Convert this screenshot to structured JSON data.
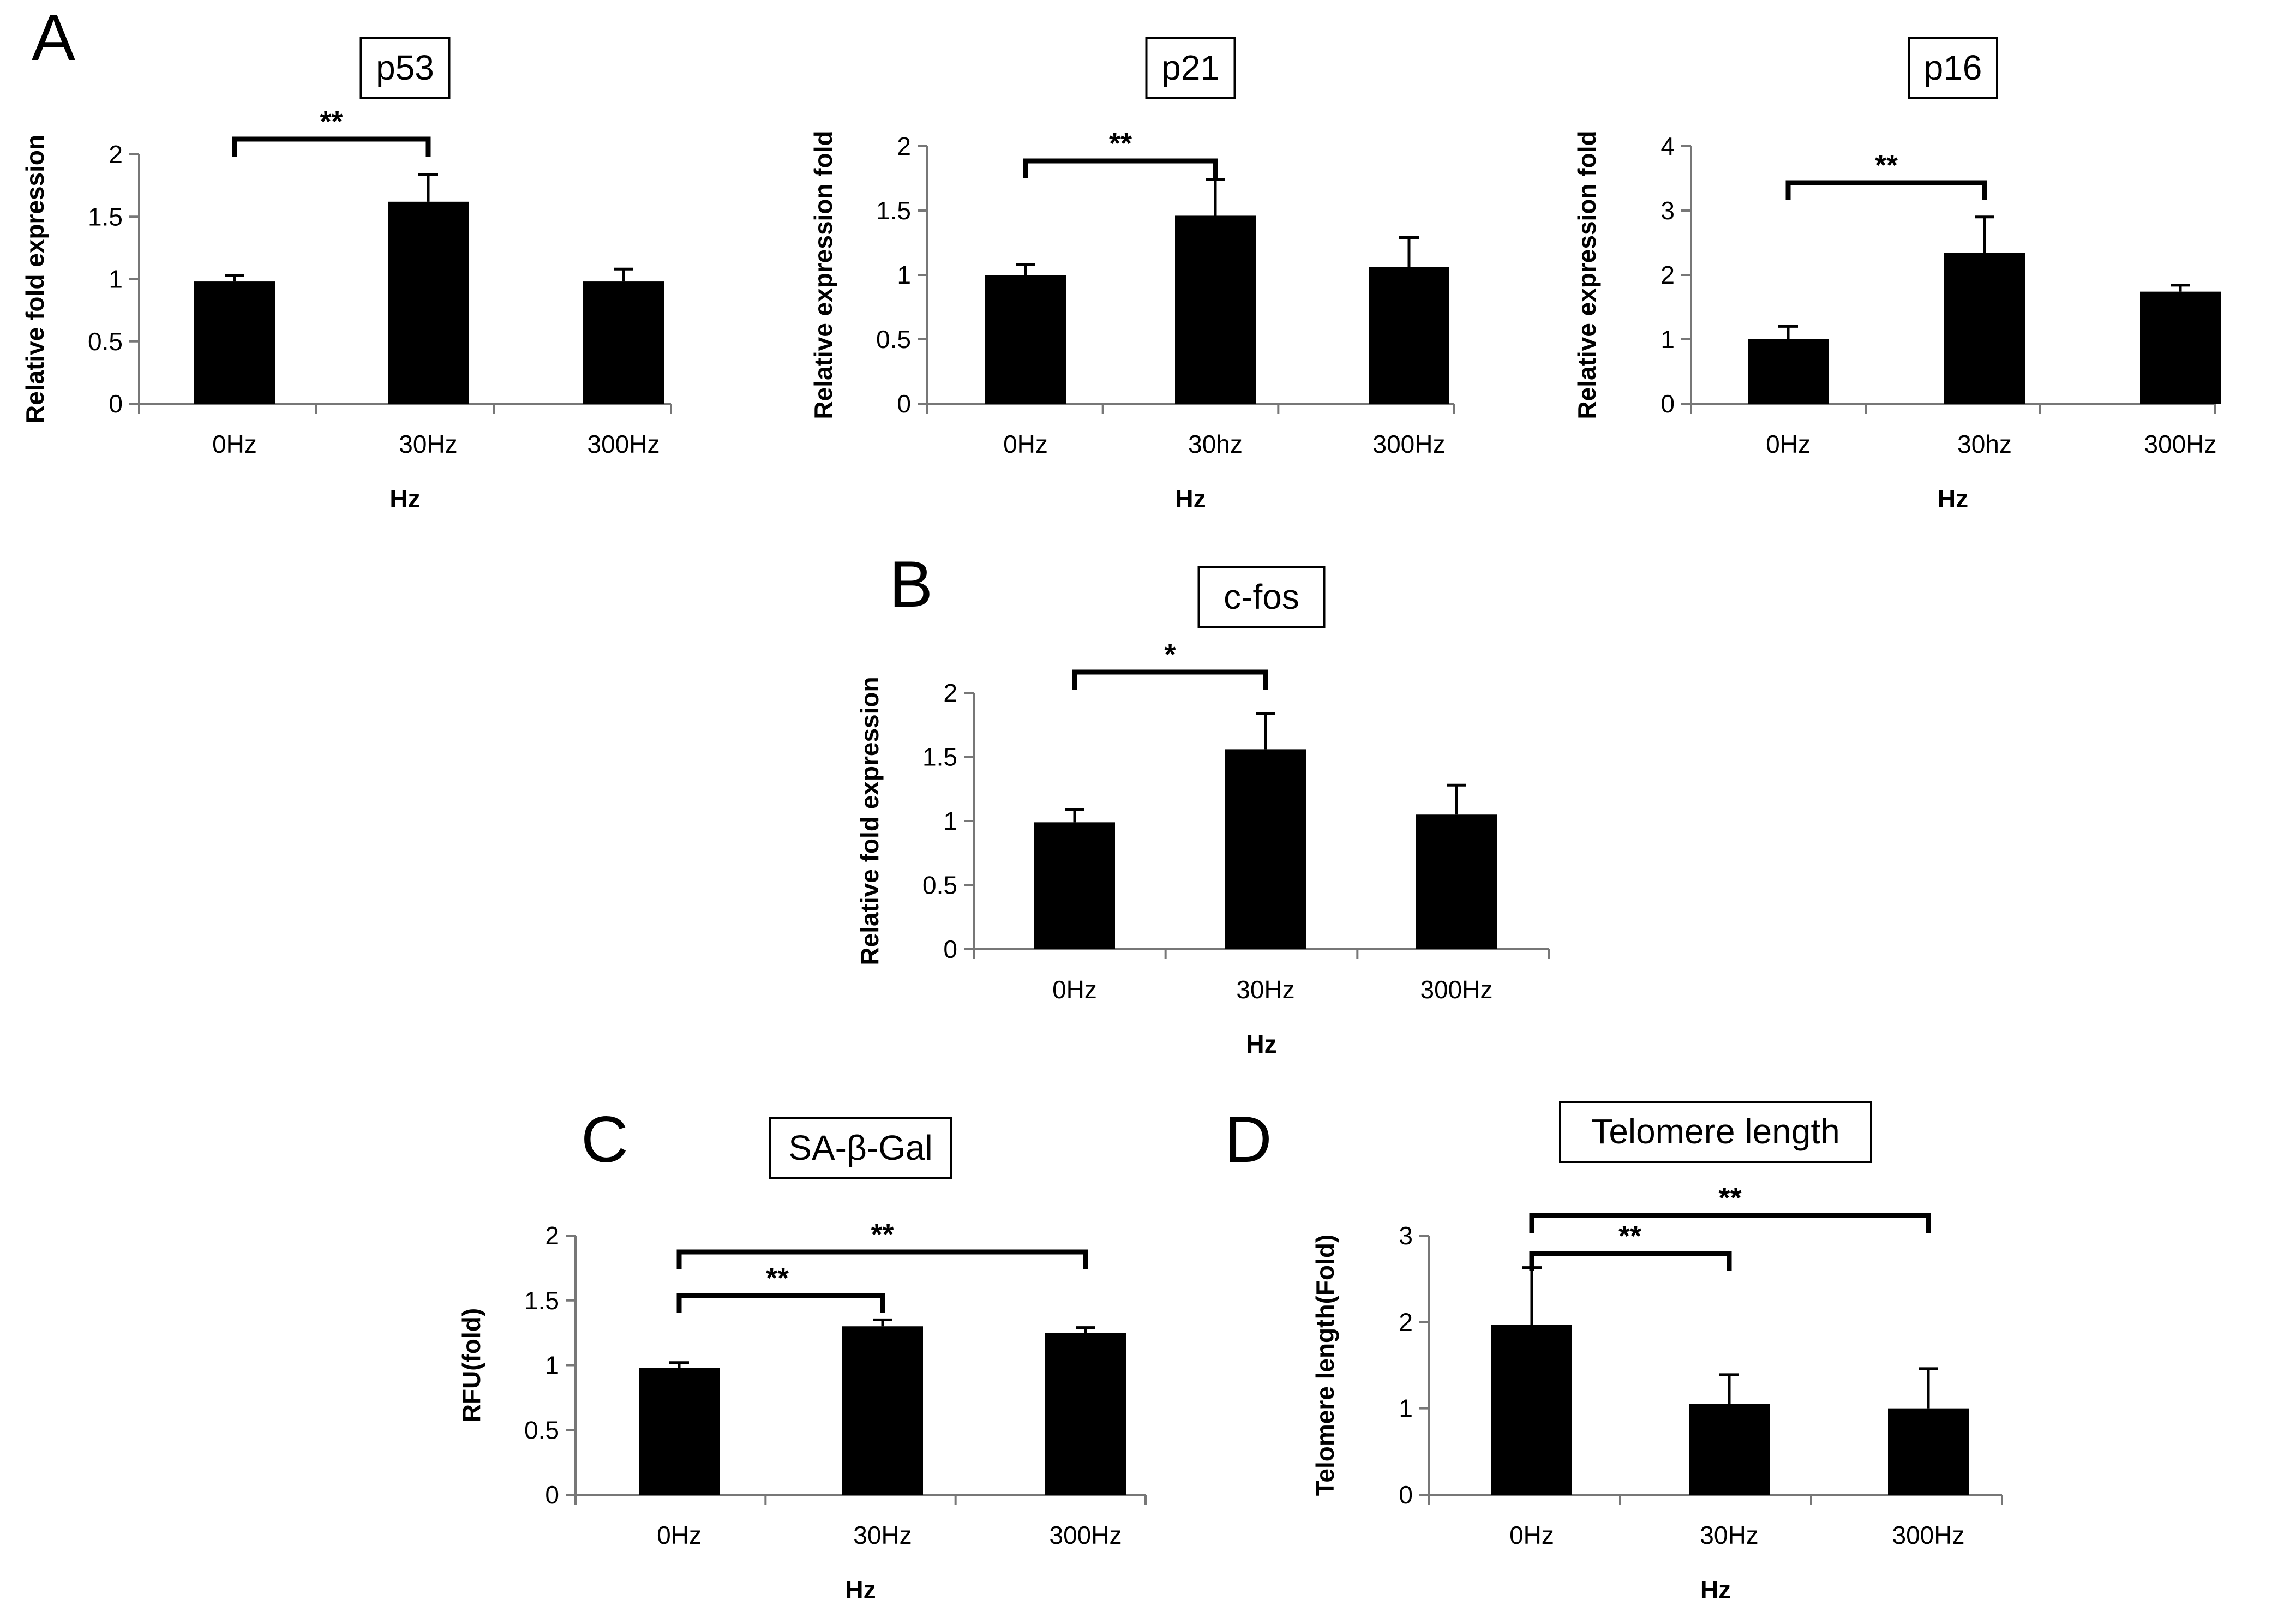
{
  "chart_data": [
    {
      "id": "p53",
      "panel": "A",
      "type": "bar",
      "title": "p53",
      "xlabel": "Hz",
      "ylabel": "Relative fold expression",
      "categories": [
        "0Hz",
        "30Hz",
        "300Hz"
      ],
      "values": [
        0.98,
        1.62,
        0.98
      ],
      "errors": [
        0.05,
        0.22,
        0.1
      ],
      "ylim": [
        0,
        2
      ],
      "yticks": [
        0,
        0.5,
        1,
        1.5,
        2
      ],
      "yticklabels": [
        "0",
        "0.5",
        "1",
        "1.5",
        "2"
      ],
      "significance": [
        {
          "from": 0,
          "to": 1,
          "label": "**"
        }
      ]
    },
    {
      "id": "p21",
      "panel": "A",
      "type": "bar",
      "title": "p21",
      "xlabel": "Hz",
      "ylabel": "Relative expression fold",
      "categories": [
        "0Hz",
        "30hz",
        "300Hz"
      ],
      "values": [
        1.0,
        1.46,
        1.06
      ],
      "errors": [
        0.08,
        0.28,
        0.23
      ],
      "ylim": [
        0,
        2
      ],
      "yticks": [
        0,
        0.5,
        1,
        1.5,
        2
      ],
      "yticklabels": [
        "0",
        "0.5",
        "1",
        "1.5",
        "2"
      ],
      "significance": [
        {
          "from": 0,
          "to": 1,
          "label": "**"
        }
      ]
    },
    {
      "id": "p16",
      "panel": "A",
      "type": "bar",
      "title": "p16",
      "xlabel": "Hz",
      "ylabel": "Relative expression fold",
      "categories": [
        "0Hz",
        "30hz",
        "300Hz"
      ],
      "values": [
        1.0,
        2.34,
        1.74
      ],
      "errors": [
        0.2,
        0.56,
        0.1
      ],
      "ylim": [
        0,
        4
      ],
      "yticks": [
        0,
        1,
        2,
        3,
        4
      ],
      "yticklabels": [
        "0",
        "1",
        "2",
        "3",
        "4"
      ],
      "significance": [
        {
          "from": 0,
          "to": 1,
          "label": "**"
        }
      ]
    },
    {
      "id": "cfos",
      "panel": "B",
      "type": "bar",
      "title": "c-fos",
      "xlabel": "Hz",
      "ylabel": "Relative fold expression",
      "categories": [
        "0Hz",
        "30Hz",
        "300Hz"
      ],
      "values": [
        0.99,
        1.56,
        1.05
      ],
      "errors": [
        0.1,
        0.28,
        0.23
      ],
      "ylim": [
        0,
        2
      ],
      "yticks": [
        0,
        0.5,
        1,
        1.5,
        2
      ],
      "yticklabels": [
        "0",
        "0.5",
        "1",
        "1.5",
        "2"
      ],
      "significance": [
        {
          "from": 0,
          "to": 1,
          "label": "*"
        }
      ]
    },
    {
      "id": "sabgal",
      "panel": "C",
      "type": "bar",
      "title": "SA-β-Gal",
      "xlabel": "Hz",
      "ylabel": "RFU(fold)",
      "categories": [
        "0Hz",
        "30Hz",
        "300Hz"
      ],
      "values": [
        0.98,
        1.3,
        1.25
      ],
      "errors": [
        0.04,
        0.05,
        0.04
      ],
      "ylim": [
        0,
        2
      ],
      "yticks": [
        0,
        0.5,
        1,
        1.5,
        2
      ],
      "yticklabels": [
        "0",
        "0.5",
        "1",
        "1.5",
        "2"
      ],
      "significance": [
        {
          "from": 0,
          "to": 1,
          "label": "**"
        },
        {
          "from": 0,
          "to": 2,
          "label": "**"
        }
      ]
    },
    {
      "id": "telomere",
      "panel": "D",
      "type": "bar",
      "title": "Telomere length",
      "xlabel": "Hz",
      "ylabel": "Telomere length(Fold)",
      "categories": [
        "0Hz",
        "30Hz",
        "300Hz"
      ],
      "values": [
        1.97,
        1.05,
        1.0
      ],
      "errors": [
        0.66,
        0.34,
        0.46
      ],
      "ylim": [
        0,
        3
      ],
      "yticks": [
        0,
        1,
        2,
        3
      ],
      "yticklabels": [
        "0",
        "1",
        "2",
        "3"
      ],
      "significance": [
        {
          "from": 0,
          "to": 1,
          "label": "**"
        },
        {
          "from": 0,
          "to": 2,
          "label": "**"
        }
      ]
    }
  ],
  "panel_labels": [
    "A",
    "B",
    "C",
    "D"
  ]
}
